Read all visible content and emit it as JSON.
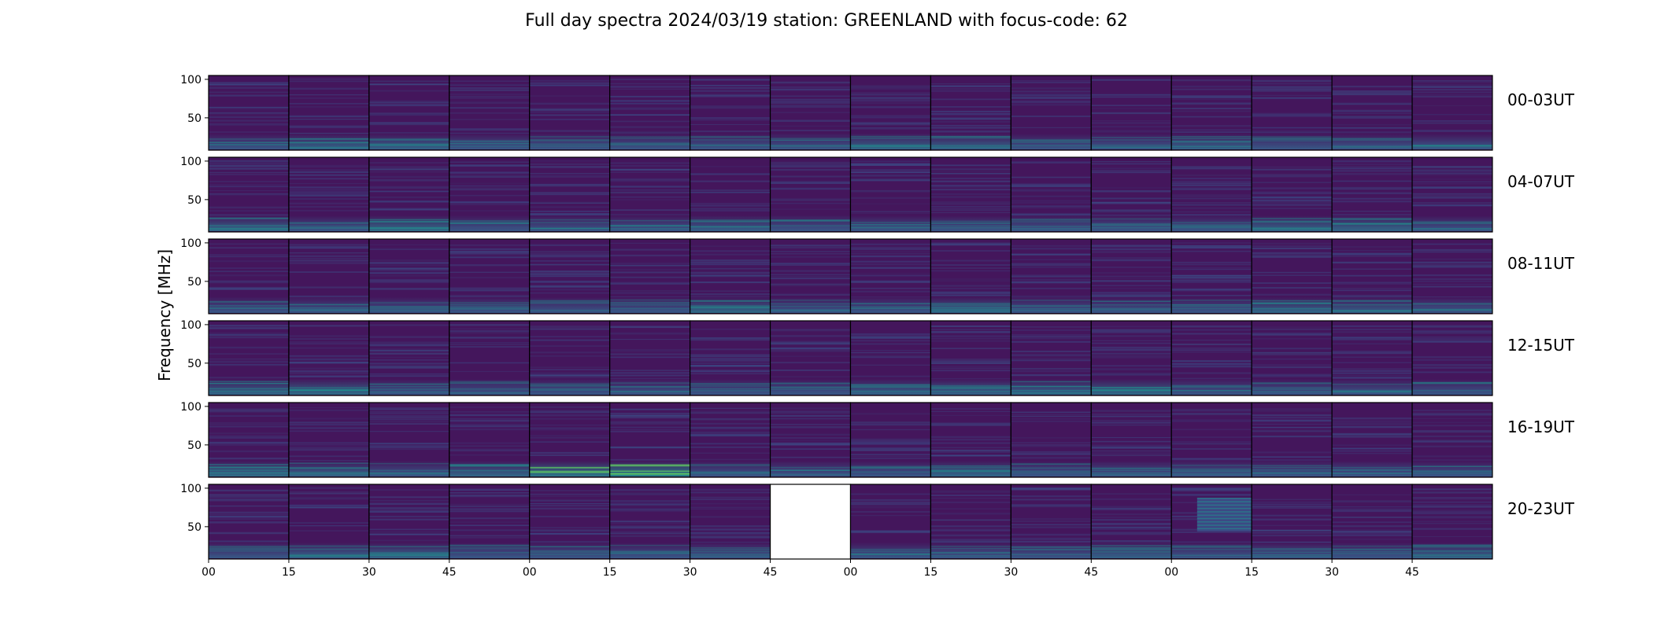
{
  "chart_data": {
    "type": "heatmap",
    "title": "Full day spectra 2024/03/19 station: GREENLAND with focus-code: 62",
    "ylabel": "Frequency [MHz]",
    "y_ticks": [
      50,
      100
    ],
    "x_tick_labels": [
      "00",
      "15",
      "30",
      "45",
      "00",
      "15",
      "30",
      "45",
      "00",
      "15",
      "30",
      "45",
      "00",
      "15",
      "30",
      "45"
    ],
    "rows": [
      {
        "label": "00-03UT",
        "hot": [
          [
            1,
            0.35
          ],
          [
            2,
            0.3
          ],
          [
            8,
            0.35
          ],
          [
            9,
            0.3
          ],
          [
            12,
            0.3
          ]
        ]
      },
      {
        "label": "04-07UT",
        "hot": [
          [
            0,
            0.35
          ],
          [
            2,
            0.45
          ],
          [
            6,
            0.25
          ],
          [
            13,
            0.35
          ],
          [
            14,
            0.35
          ]
        ]
      },
      {
        "label": "08-11UT",
        "hot": [
          [
            6,
            0.4
          ],
          [
            9,
            0.35
          ],
          [
            13,
            0.35
          ],
          [
            14,
            0.3
          ]
        ]
      },
      {
        "label": "12-15UT",
        "hot": [
          [
            0,
            0.35
          ],
          [
            1,
            0.4
          ],
          [
            8,
            0.3
          ],
          [
            9,
            0.3
          ],
          [
            10,
            0.35
          ],
          [
            11,
            0.4
          ]
        ]
      },
      {
        "label": "16-19UT",
        "hot": [
          [
            0,
            0.45
          ],
          [
            1,
            0.3
          ],
          [
            3,
            0.35
          ],
          [
            4,
            0.55
          ],
          [
            5,
            0.85
          ],
          [
            9,
            0.35
          ]
        ]
      },
      {
        "label": "20-23UT",
        "hot": [
          [
            1,
            0.3
          ],
          [
            2,
            0.35
          ],
          [
            11,
            0.3
          ],
          [
            15,
            0.35
          ]
        ],
        "missing": [
          7
        ],
        "band": [
          12
        ]
      }
    ],
    "panels_per_row": 16,
    "colormap": "viridis",
    "colors": {
      "base": "#44165c",
      "mid": "#3b528b",
      "hot": "#21908d",
      "bright": "#5ec962"
    }
  }
}
